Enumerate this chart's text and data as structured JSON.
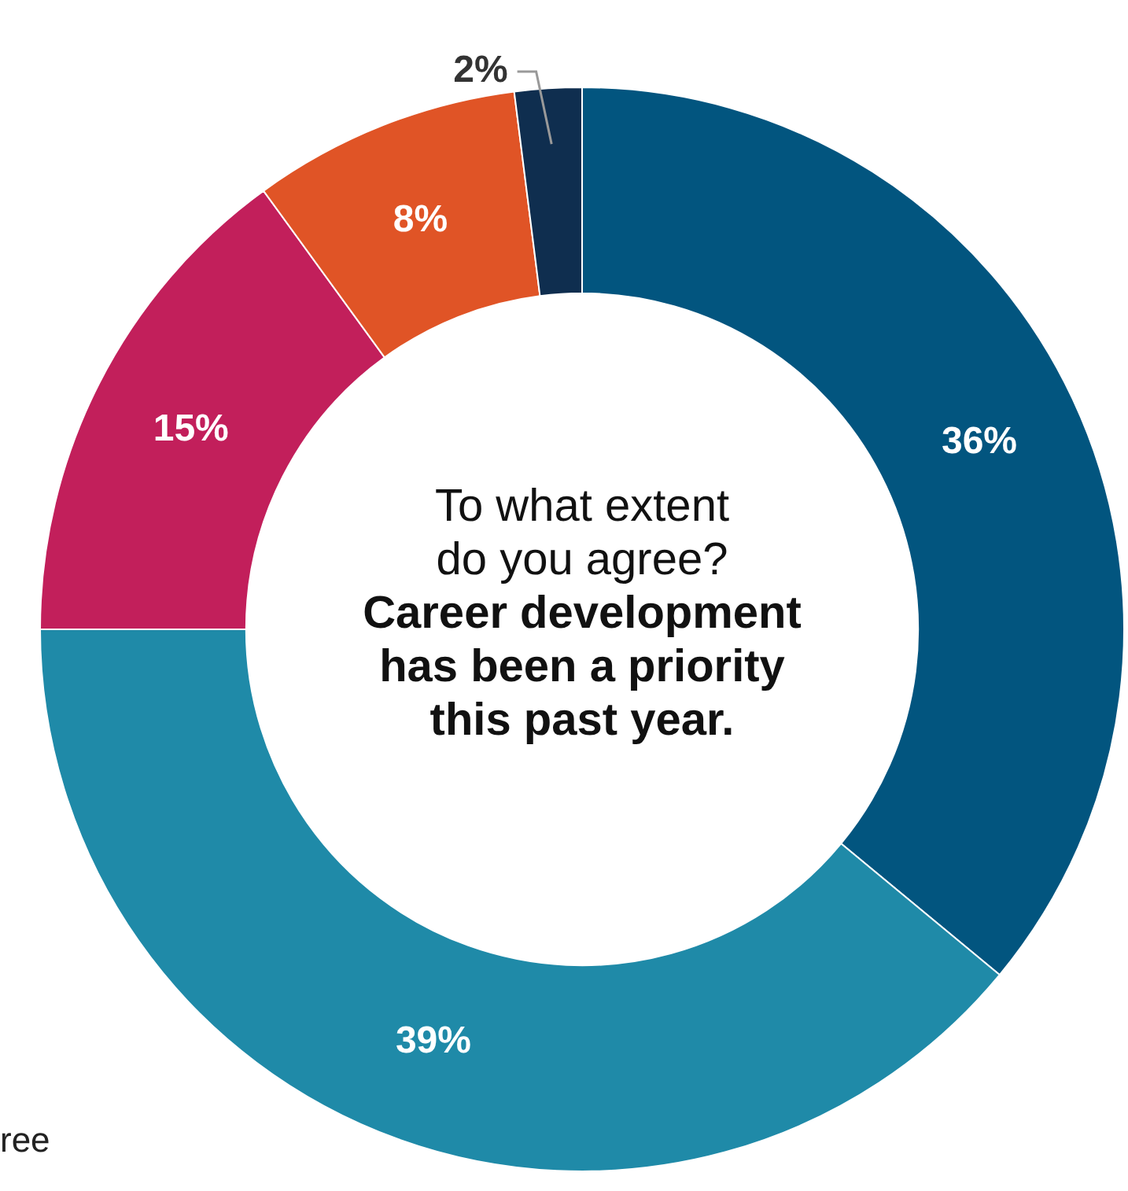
{
  "chart_data": {
    "type": "donut",
    "title": "To what extent do you agree?",
    "subtitle": "Career development has been a priority this past year.",
    "categories": [
      null,
      null,
      null,
      null,
      null
    ],
    "values": [
      36,
      39,
      15,
      8,
      2
    ],
    "colors": [
      "#02557f",
      "#1f8aa8",
      "#c21f5b",
      "#e05426",
      "#0f2e4f"
    ],
    "value_labels": [
      "36%",
      "39%",
      "15%",
      "8%",
      "2%"
    ],
    "annotations": [
      "ree"
    ]
  }
}
